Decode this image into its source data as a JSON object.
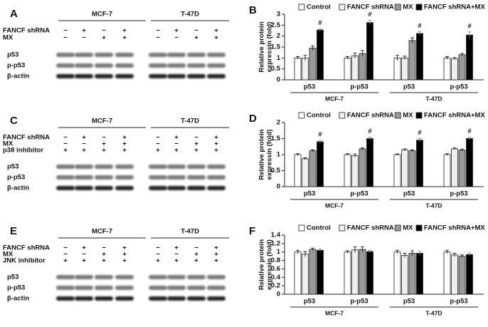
{
  "blots": [
    {
      "label": "A",
      "cell_lines": [
        "MCF-7",
        "T-47D"
      ],
      "conditions": [
        {
          "name": "FANCF shRNA",
          "signs": [
            "−",
            "+",
            "−",
            "+",
            "−",
            "+",
            "−",
            "+"
          ]
        },
        {
          "name": "MX",
          "signs": [
            "−",
            "−",
            "+",
            "+",
            "−",
            "−",
            "+",
            "+"
          ]
        }
      ],
      "bands": [
        "p53",
        "p-p53",
        "β-actin"
      ]
    },
    {
      "label": "C",
      "cell_lines": [
        "MCF-7",
        "T-47D"
      ],
      "conditions": [
        {
          "name": "FANCF shRNA",
          "signs": [
            "−",
            "+",
            "−",
            "+",
            "−",
            "+",
            "−",
            "+"
          ]
        },
        {
          "name": "MX",
          "signs": [
            "−",
            "−",
            "+",
            "+",
            "−",
            "−",
            "+",
            "+"
          ]
        },
        {
          "name": "p38 inhibitor",
          "signs": [
            "+",
            "+",
            "+",
            "+",
            "+",
            "+",
            "+",
            "+"
          ]
        }
      ],
      "bands": [
        "p53",
        "p-p53",
        "β-actin"
      ]
    },
    {
      "label": "E",
      "cell_lines": [
        "MCF-7",
        "T-47D"
      ],
      "conditions": [
        {
          "name": "FANCF shRNA",
          "signs": [
            "−",
            "+",
            "−",
            "+",
            "−",
            "+",
            "−",
            "+"
          ]
        },
        {
          "name": "MX",
          "signs": [
            "−",
            "−",
            "+",
            "+",
            "−",
            "−",
            "+",
            "+"
          ]
        },
        {
          "name": "JNK inhibitor",
          "signs": [
            "+",
            "+",
            "+",
            "+",
            "+",
            "+",
            "+",
            "+"
          ]
        }
      ],
      "bands": [
        "p53",
        "p-p53",
        "β-actin"
      ]
    }
  ],
  "chart_data": [
    {
      "type": "bar",
      "label": "B",
      "ylabel": [
        "Relative protein",
        "expressin (fold)"
      ],
      "categories": [
        "p53",
        "p-p53",
        "p53",
        "p-p53"
      ],
      "groups": [
        "MCF-7",
        "T-47D"
      ],
      "ylim": [
        0,
        3
      ],
      "yticks": [
        0,
        0.5,
        1,
        1.5,
        2,
        2.5,
        3
      ],
      "series": [
        {
          "name": "Control",
          "color": "#ffffff",
          "values": [
            1.0,
            1.0,
            1.0,
            1.0
          ],
          "errors": [
            0.06,
            0.06,
            0.12,
            0.06
          ]
        },
        {
          "name": "FANCF shRNA",
          "color": "#f0f0f0",
          "values": [
            1.0,
            1.1,
            1.0,
            0.97
          ],
          "errors": [
            0.12,
            0.12,
            0.08,
            0.05
          ]
        },
        {
          "name": "MX",
          "color": "#9a9a9a",
          "values": [
            1.45,
            1.2,
            1.8,
            1.15
          ],
          "errors": [
            0.1,
            0.14,
            0.12,
            0.06
          ]
        },
        {
          "name": "FANCF shRNA+MX",
          "color": "#000000",
          "values": [
            2.28,
            2.62,
            2.12,
            2.05
          ],
          "errors": [
            0.05,
            0.1,
            0.08,
            0.14
          ],
          "flags": [
            "#",
            "#",
            "#",
            "#"
          ]
        }
      ]
    },
    {
      "type": "bar",
      "label": "D",
      "ylabel": [
        "Relative protein",
        "expressin (fold)"
      ],
      "categories": [
        "p53",
        "p-p53",
        "p53",
        "p-p53"
      ],
      "groups": [
        "MCF-7",
        "T-47D"
      ],
      "ylim": [
        0,
        2
      ],
      "yticks": [
        0,
        0.5,
        1,
        1.5,
        2
      ],
      "series": [
        {
          "name": "Control",
          "color": "#ffffff",
          "values": [
            1.0,
            1.0,
            1.0,
            1.0
          ],
          "errors": [
            0.03,
            0.03,
            0.02,
            0.03
          ]
        },
        {
          "name": "FANCF shRNA",
          "color": "#f0f0f0",
          "values": [
            0.87,
            0.97,
            1.15,
            1.18
          ],
          "errors": [
            0.03,
            0.05,
            0.03,
            0.03
          ]
        },
        {
          "name": "MX",
          "color": "#9a9a9a",
          "values": [
            1.12,
            1.18,
            1.12,
            1.14
          ],
          "errors": [
            0.03,
            0.03,
            0.03,
            0.03
          ]
        },
        {
          "name": "FANCF shRNA+MX",
          "color": "#000000",
          "values": [
            1.4,
            1.5,
            1.45,
            1.5
          ],
          "errors": [
            0.04,
            0.04,
            0.05,
            0.04
          ],
          "flags": [
            "#",
            "#",
            "#",
            "#"
          ]
        }
      ]
    },
    {
      "type": "bar",
      "label": "F",
      "ylabel": [
        "Relative protein",
        "expressin (fold)"
      ],
      "categories": [
        "p53",
        "p-p53",
        "p53",
        "p-p53"
      ],
      "groups": [
        "MCF-7",
        "T-47D"
      ],
      "ylim": [
        0,
        1.4
      ],
      "yticks": [
        0,
        0.2,
        0.4,
        0.6,
        0.8,
        1,
        1.2,
        1.4
      ],
      "series": [
        {
          "name": "Control",
          "color": "#ffffff",
          "values": [
            1.0,
            1.0,
            1.0,
            1.0
          ],
          "errors": [
            0.04,
            0.03,
            0.04,
            0.04
          ]
        },
        {
          "name": "FANCF shRNA",
          "color": "#f0f0f0",
          "values": [
            0.95,
            1.05,
            0.92,
            0.93
          ],
          "errors": [
            0.06,
            0.07,
            0.05,
            0.04
          ]
        },
        {
          "name": "MX",
          "color": "#9a9a9a",
          "values": [
            1.06,
            1.06,
            0.97,
            0.9
          ],
          "errors": [
            0.03,
            0.06,
            0.06,
            0.03
          ]
        },
        {
          "name": "FANCF shRNA+MX",
          "color": "#000000",
          "values": [
            1.04,
            1.01,
            0.97,
            0.94
          ],
          "errors": [
            0.03,
            0.03,
            0.05,
            0.04
          ]
        }
      ]
    }
  ]
}
